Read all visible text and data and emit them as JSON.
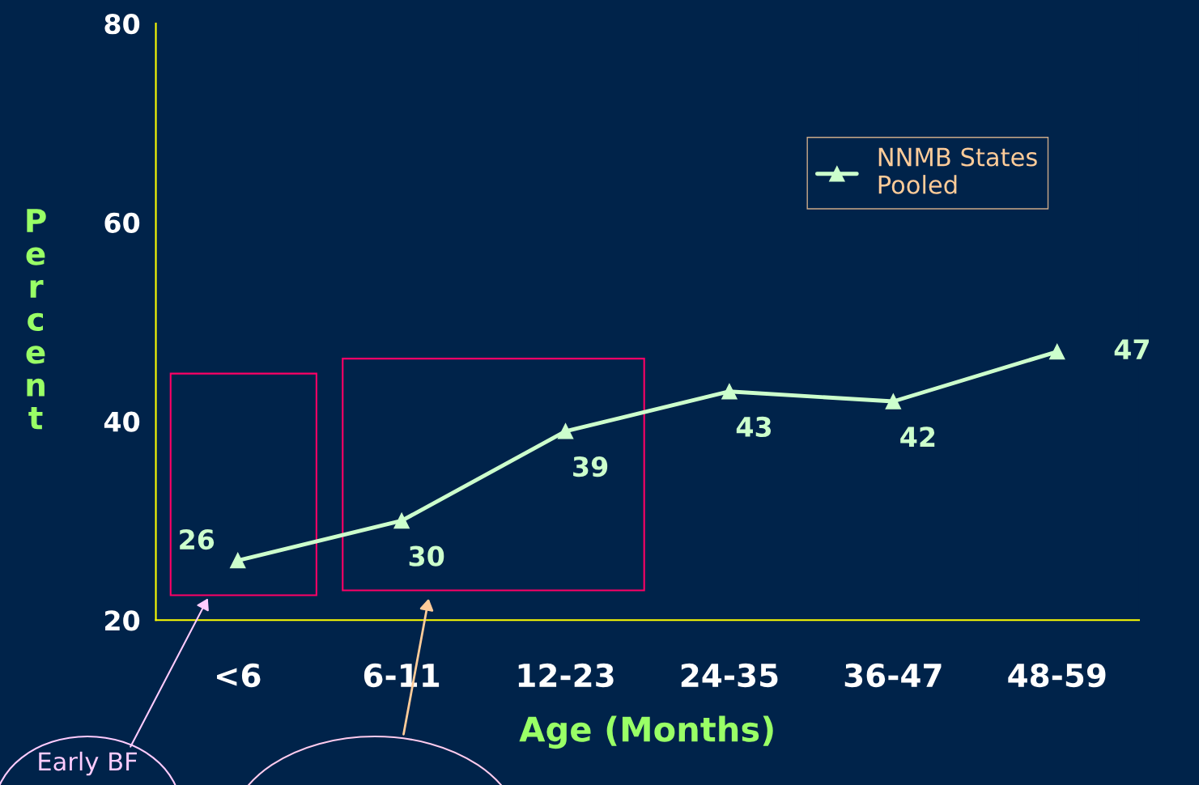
{
  "chart_data": {
    "type": "line",
    "xlabel": "Age (Months)",
    "ylabel": "Percent",
    "categories": [
      "<6",
      "6-11",
      "12-23",
      "24-35",
      "36-47",
      "48-59"
    ],
    "series": [
      {
        "name": "NNMB States Pooled",
        "color": "#ccffcc",
        "values": [
          26,
          30,
          39,
          43,
          42,
          47
        ]
      }
    ],
    "ylim": [
      20,
      80
    ],
    "yticks": [
      20,
      40,
      60,
      80
    ],
    "marker": "triangle",
    "line_style": "solid",
    "grid": false,
    "legend": "top right",
    "data_labels": true,
    "annotations": [
      "Early BF"
    ]
  }
}
